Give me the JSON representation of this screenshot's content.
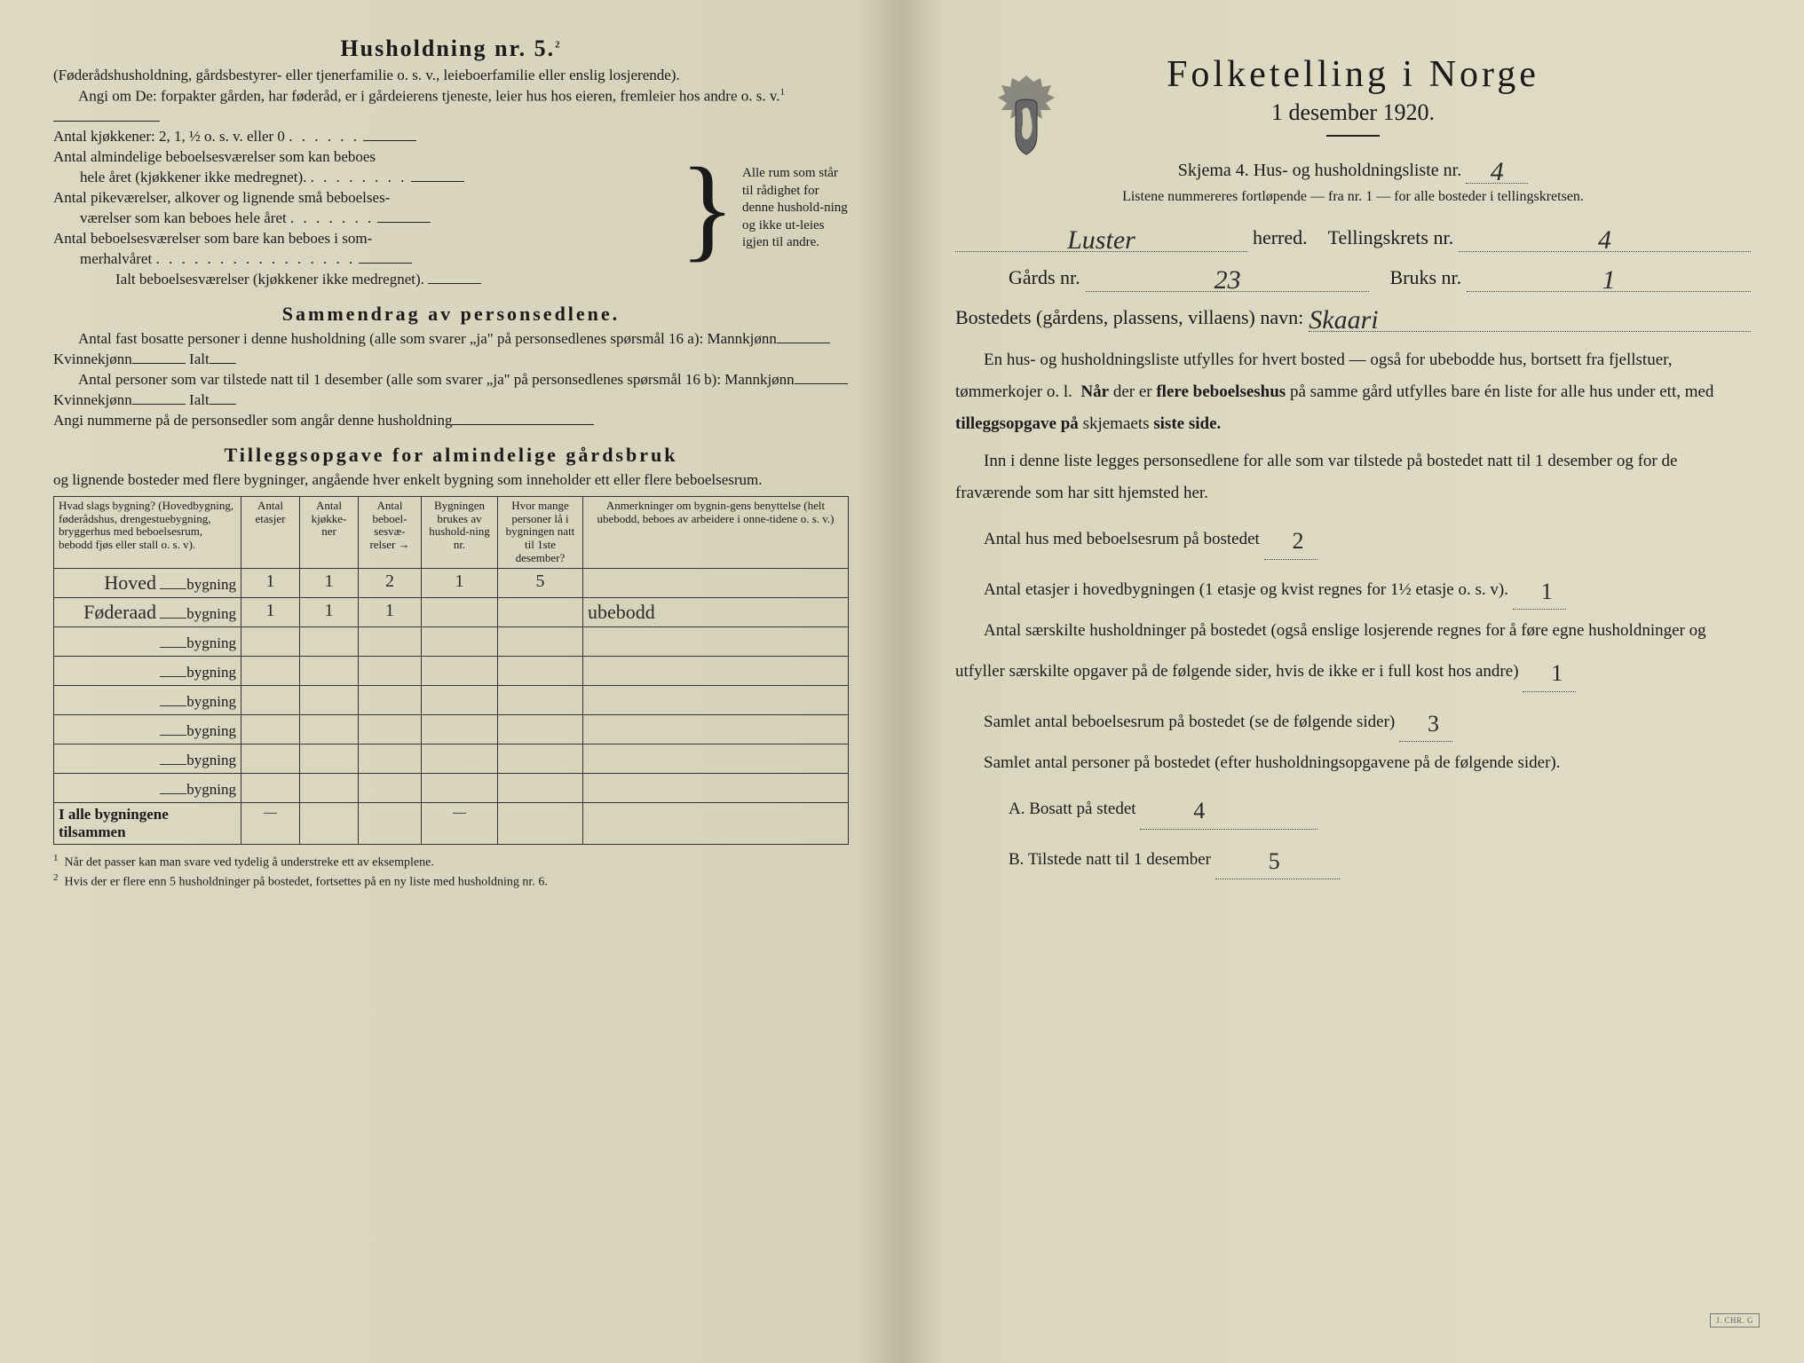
{
  "left": {
    "household_heading": "Husholdning nr. 5.",
    "household_heading_sup": "2",
    "intro1": "(Føderådshusholdning, gårdsbestyrer- eller tjenerfamilie o. s. v., leieboerfamilie eller enslig losjerende).",
    "intro2": "Angi om De:  forpakter gården, har føderåd, er i gårdeierens tjeneste, leier hus hos eieren, fremleier hos andre o. s. v.",
    "intro2_sup": "1",
    "kitchens_line": "Antal kjøkkener: 2, 1, ½ o. s. v. eller 0",
    "rooms_line1a": "Antal almindelige beboelsesværelser som kan beboes",
    "rooms_line1b": "hele året (kjøkkener ikke medregnet).",
    "rooms_line2a": "Antal pikeværelser, alkover og lignende små beboelses-",
    "rooms_line2b": "værelser som kan beboes hele året",
    "rooms_line3a": "Antal beboelsesværelser som bare kan beboes i som-",
    "rooms_line3b": "merhalvåret",
    "rooms_total": "Ialt beboelsesværelser  (kjøkkener ikke medregnet).",
    "brace_aside": "Alle rum som står til rådighet for denne hushold-ning og ikke ut-leies igjen til andre.",
    "summary_heading": "Sammendrag av personsedlene.",
    "summary1a": "Antal fast bosatte personer i denne husholdning (alle som svarer „ja\" på personsedlenes spørsmål 16 a): Mannkjønn",
    "summary1_kv": "Kvinnekjønn",
    "summary1_ialt": "Ialt",
    "summary2a": "Antal personer som var tilstede natt til 1 desember (alle som svarer „ja\" på personsedlenes spørsmål 16 b): Mannkjønn",
    "summary3": "Angi nummerne på de personsedler som angår denne husholdning",
    "tillegg_heading": "Tilleggsopgave for almindelige gårdsbruk",
    "tillegg_sub": "og lignende bosteder med flere bygninger, angående hver enkelt bygning som inneholder ett eller flere beboelsesrum.",
    "table": {
      "headers": [
        "Hvad slags bygning?\n(Hovedbygning, føderådshus, drengestuebygning, bryggerhus med beboelsesrum, bebodd fjøs eller stall o. s. v).",
        "Antal etasjer",
        "Antal kjøkke-ner",
        "Antal beboel-sesvæ-relser →",
        "Bygningen brukes av hushold-ning nr.",
        "Hvor mange personer lå i bygningen natt til 1ste desember?",
        "Anmerkninger om bygnin-gens benyttelse (helt ubebodd, beboes av arbeidere i onne-tidene o. s. v.)"
      ],
      "rows": [
        {
          "label_hw": "Hoved",
          "label": "bygning",
          "c": [
            "1",
            "1",
            "2",
            "1",
            "5",
            ""
          ]
        },
        {
          "label_hw": "Føderaad",
          "label": "bygning",
          "c": [
            "1",
            "1",
            "1",
            "",
            "",
            "ubebodd"
          ]
        },
        {
          "label_hw": "",
          "label": "bygning",
          "c": [
            "",
            "",
            "",
            "",
            "",
            ""
          ]
        },
        {
          "label_hw": "",
          "label": "bygning",
          "c": [
            "",
            "",
            "",
            "",
            "",
            ""
          ]
        },
        {
          "label_hw": "",
          "label": "bygning",
          "c": [
            "",
            "",
            "",
            "",
            "",
            ""
          ]
        },
        {
          "label_hw": "",
          "label": "bygning",
          "c": [
            "",
            "",
            "",
            "",
            "",
            ""
          ]
        },
        {
          "label_hw": "",
          "label": "bygning",
          "c": [
            "",
            "",
            "",
            "",
            "",
            ""
          ]
        },
        {
          "label_hw": "",
          "label": "bygning",
          "c": [
            "",
            "",
            "",
            "",
            "",
            ""
          ]
        }
      ],
      "total_label": "I alle bygningene tilsammen",
      "total_row": [
        "—",
        "",
        "",
        "—",
        "",
        ""
      ]
    },
    "footnote1": "Når det passer kan man svare ved tydelig å understreke ett av eksemplene.",
    "footnote2": "Hvis der er flere enn 5 husholdninger på bostedet, fortsettes på en ny liste med husholdning nr. 6."
  },
  "right": {
    "title": "Folketelling  i  Norge",
    "subtitle": "1 desember 1920.",
    "schema_line": "Skjema 4.  Hus- og husholdningsliste nr.",
    "schema_value": "4",
    "listene": "Listene nummereres fortløpende — fra nr. 1 — for alle bosteder i tellingskretsen.",
    "herred_label": "herred.",
    "herred_value": "Luster",
    "krets_label": "Tellingskrets nr.",
    "krets_value": "4",
    "gards_label": "Gårds nr.",
    "gards_value": "23",
    "bruks_label": "Bruks nr.",
    "bruks_value": "1",
    "bosted_label": "Bostedets (gårdens, plassens, villaens) navn:",
    "bosted_value": "Skaari",
    "para1": "En hus- og husholdningsliste utfylles for hvert bosted — også for ubebodde hus, bortsett fra fjellstuer, tømmerkojer o. l.  Når der er flere beboelseshus på samme gård utfylles bare én liste for alle hus under ett, med tilleggsopgave på skjemaets siste side.",
    "para2": "Inn i denne liste legges personsedlene for alle som var tilstede på bostedet natt til 1 desember og for de fraværende som har sitt hjemsted her.",
    "q1": "Antal hus med beboelsesrum på bostedet",
    "q1_value": "2",
    "q2a": "Antal etasjer i hovedbygningen (1 etasje og kvist regnes for 1½ etasje o. s. v).",
    "q2_value": "1",
    "q3a": "Antal særskilte husholdninger på bostedet (også enslige losjerende regnes for å føre egne husholdninger og utfyller særskilte opgaver på de følgende sider, hvis de ikke er i full kost hos andre)",
    "q3_value": "1",
    "q4": "Samlet antal beboelsesrum på bostedet (se de følgende sider)",
    "q4_value": "3",
    "q5": "Samlet antal personer på bostedet (efter husholdningsopgavene på de følgende sider).",
    "q5a_label": "A.  Bosatt på stedet",
    "q5a_value": "4",
    "q5b_label": "B.  Tilstede natt til 1 desember",
    "q5b_value": "5",
    "stamp": "J. CHR. G"
  },
  "colors": {
    "paper": "#dad6be",
    "ink": "#1a1a1a",
    "handwriting": "#2a2a2a"
  }
}
